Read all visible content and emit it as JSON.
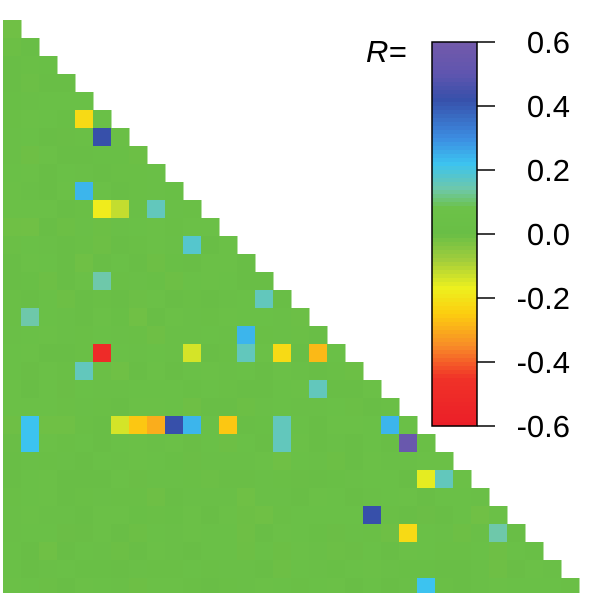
{
  "chart_data": {
    "type": "heatmap",
    "layout": "lower-triangular correlation matrix",
    "n": 32,
    "colorbar": {
      "label": "R=",
      "ticks": [
        "0.6",
        "0.4",
        "0.2",
        "0.0",
        "-0.2",
        "-0.4",
        "-0.6"
      ],
      "tick_values": [
        0.6,
        0.4,
        0.2,
        0.0,
        -0.2,
        -0.4,
        -0.6
      ],
      "range": [
        -0.6,
        0.6
      ]
    },
    "base_value": 0.02,
    "highlighted_cells": [
      {
        "row": 5,
        "col": 4,
        "value": -0.22
      },
      {
        "row": 6,
        "col": 5,
        "value": 0.42
      },
      {
        "row": 9,
        "col": 4,
        "value": 0.24
      },
      {
        "row": 10,
        "col": 5,
        "value": -0.18
      },
      {
        "row": 10,
        "col": 6,
        "value": -0.12
      },
      {
        "row": 10,
        "col": 8,
        "value": 0.16
      },
      {
        "row": 12,
        "col": 10,
        "value": 0.18
      },
      {
        "row": 14,
        "col": 5,
        "value": 0.14
      },
      {
        "row": 15,
        "col": 14,
        "value": 0.16
      },
      {
        "row": 16,
        "col": 1,
        "value": 0.14
      },
      {
        "row": 17,
        "col": 13,
        "value": 0.24
      },
      {
        "row": 18,
        "col": 5,
        "value": -0.5
      },
      {
        "row": 18,
        "col": 10,
        "value": -0.14
      },
      {
        "row": 18,
        "col": 13,
        "value": 0.16
      },
      {
        "row": 18,
        "col": 15,
        "value": -0.22
      },
      {
        "row": 18,
        "col": 17,
        "value": -0.28
      },
      {
        "row": 19,
        "col": 4,
        "value": 0.16
      },
      {
        "row": 20,
        "col": 17,
        "value": 0.16
      },
      {
        "row": 22,
        "col": 1,
        "value": 0.22
      },
      {
        "row": 22,
        "col": 6,
        "value": -0.14
      },
      {
        "row": 22,
        "col": 7,
        "value": -0.26
      },
      {
        "row": 22,
        "col": 8,
        "value": -0.3
      },
      {
        "row": 22,
        "col": 9,
        "value": 0.42
      },
      {
        "row": 22,
        "col": 10,
        "value": 0.24
      },
      {
        "row": 22,
        "col": 12,
        "value": -0.26
      },
      {
        "row": 22,
        "col": 15,
        "value": 0.16
      },
      {
        "row": 22,
        "col": 21,
        "value": 0.24
      },
      {
        "row": 23,
        "col": 1,
        "value": 0.22
      },
      {
        "row": 23,
        "col": 15,
        "value": 0.16
      },
      {
        "row": 23,
        "col": 22,
        "value": 0.55
      },
      {
        "row": 25,
        "col": 23,
        "value": -0.16
      },
      {
        "row": 25,
        "col": 24,
        "value": 0.16
      },
      {
        "row": 27,
        "col": 20,
        "value": 0.42
      },
      {
        "row": 28,
        "col": 22,
        "value": -0.22
      },
      {
        "row": 28,
        "col": 27,
        "value": 0.14
      },
      {
        "row": 31,
        "col": 23,
        "value": 0.22
      }
    ]
  }
}
